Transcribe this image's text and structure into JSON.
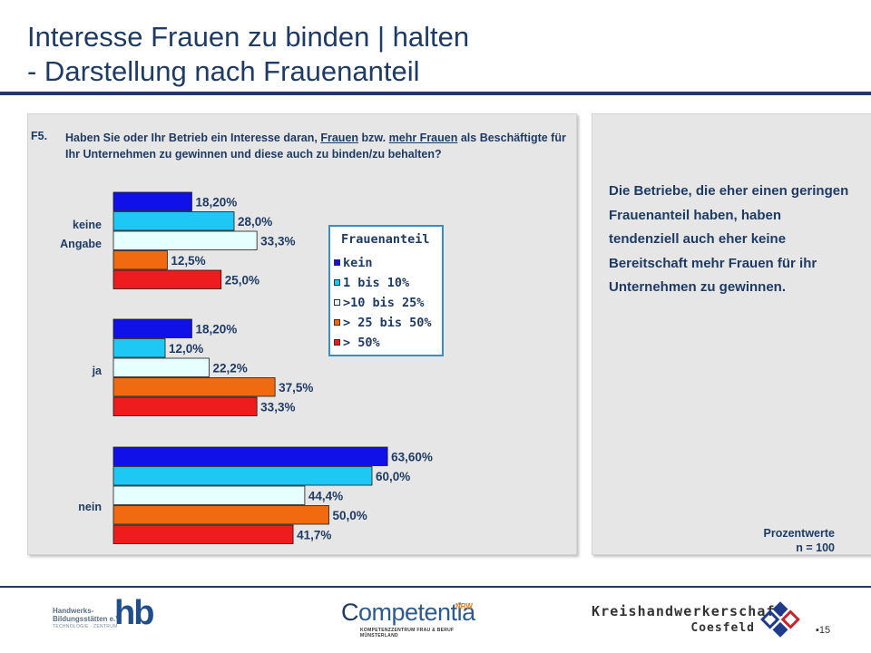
{
  "slide": {
    "title_line1": "Interesse Frauen zu binden | halten",
    "title_line2": "- Darstellung nach Frauenanteil",
    "question_number": "F5.",
    "question_part1": "Haben Sie oder Ihr Betrieb ein Interesse daran,",
    "question_link1": "Frauen",
    "question_part2": "bzw.",
    "question_link2": "mehr Frauen",
    "question_part3": "als Beschäftigte für Ihr Unternehmen zu gewinnen und diese auch zu binden/zu behalten?",
    "note": "Die Betriebe, die eher einen geringen Frauenanteil haben, haben tendenziell auch eher keine Bereitschaft mehr Frauen für ihr Unternehmen zu gewinnen.",
    "footnote_line1": "Prozentwerte",
    "footnote_line2": "n = 100",
    "page_number": "15"
  },
  "logos": {
    "hb_line1": "Handwerks-",
    "hb_line2": "Bildungsstätten e.V.",
    "hb_sub": "TECHNOLOGIE · ZENTRUM",
    "hb_mark": "hb",
    "comp_c": "C",
    "comp_rest": "ompetentia",
    "comp_nrw": "NRW",
    "comp_sub1": "KOMPETENZZENTRUM FRAU & BERUF",
    "comp_sub2": "MÜNSTERLAND",
    "khw_name": "Kreishandwerkerschaft",
    "khw_place": "Coesfeld"
  },
  "chart_data": {
    "type": "bar",
    "orientation": "horizontal",
    "title": "",
    "xlabel": "",
    "ylabel": "",
    "xlim": [
      0,
      100
    ],
    "grid": false,
    "legend_title": "Frauenanteil",
    "legend_position": "top-right",
    "categories": [
      "keine Angabe",
      "ja",
      "nein"
    ],
    "category_labels": [
      [
        "keine",
        "Angabe"
      ],
      [
        "ja"
      ],
      [
        "nein"
      ]
    ],
    "series": [
      {
        "name": "kein",
        "color": "#1010e8",
        "values": [
          18.2,
          18.2,
          63.6
        ],
        "labels": [
          "18,20%",
          "18,20%",
          "63,60%"
        ]
      },
      {
        "name": "1 bis 10%",
        "color": "#1ec8f5",
        "values": [
          28.0,
          12.0,
          60.0
        ],
        "labels": [
          "28,0%",
          "12,0%",
          "60,0%"
        ]
      },
      {
        "name": ">10 bis 25%",
        "color": "#e6ffff",
        "values": [
          33.3,
          22.2,
          44.4
        ],
        "labels": [
          "33,3%",
          "22,2%",
          "44,4%"
        ]
      },
      {
        "name": "> 25 bis 50%",
        "color": "#f26a10",
        "values": [
          12.5,
          37.5,
          50.0
        ],
        "labels": [
          "12,5%",
          "37,5%",
          "50,0%"
        ]
      },
      {
        "name": "> 50%",
        "color": "#ee1c1c",
        "values": [
          25.0,
          33.3,
          41.7
        ],
        "labels": [
          "25,0%",
          "33,3%",
          "41,7%"
        ]
      }
    ]
  },
  "colors": {
    "title": "#1f3b64",
    "legend_border": "#3b8dbf",
    "panel": "#e6e6e6"
  }
}
